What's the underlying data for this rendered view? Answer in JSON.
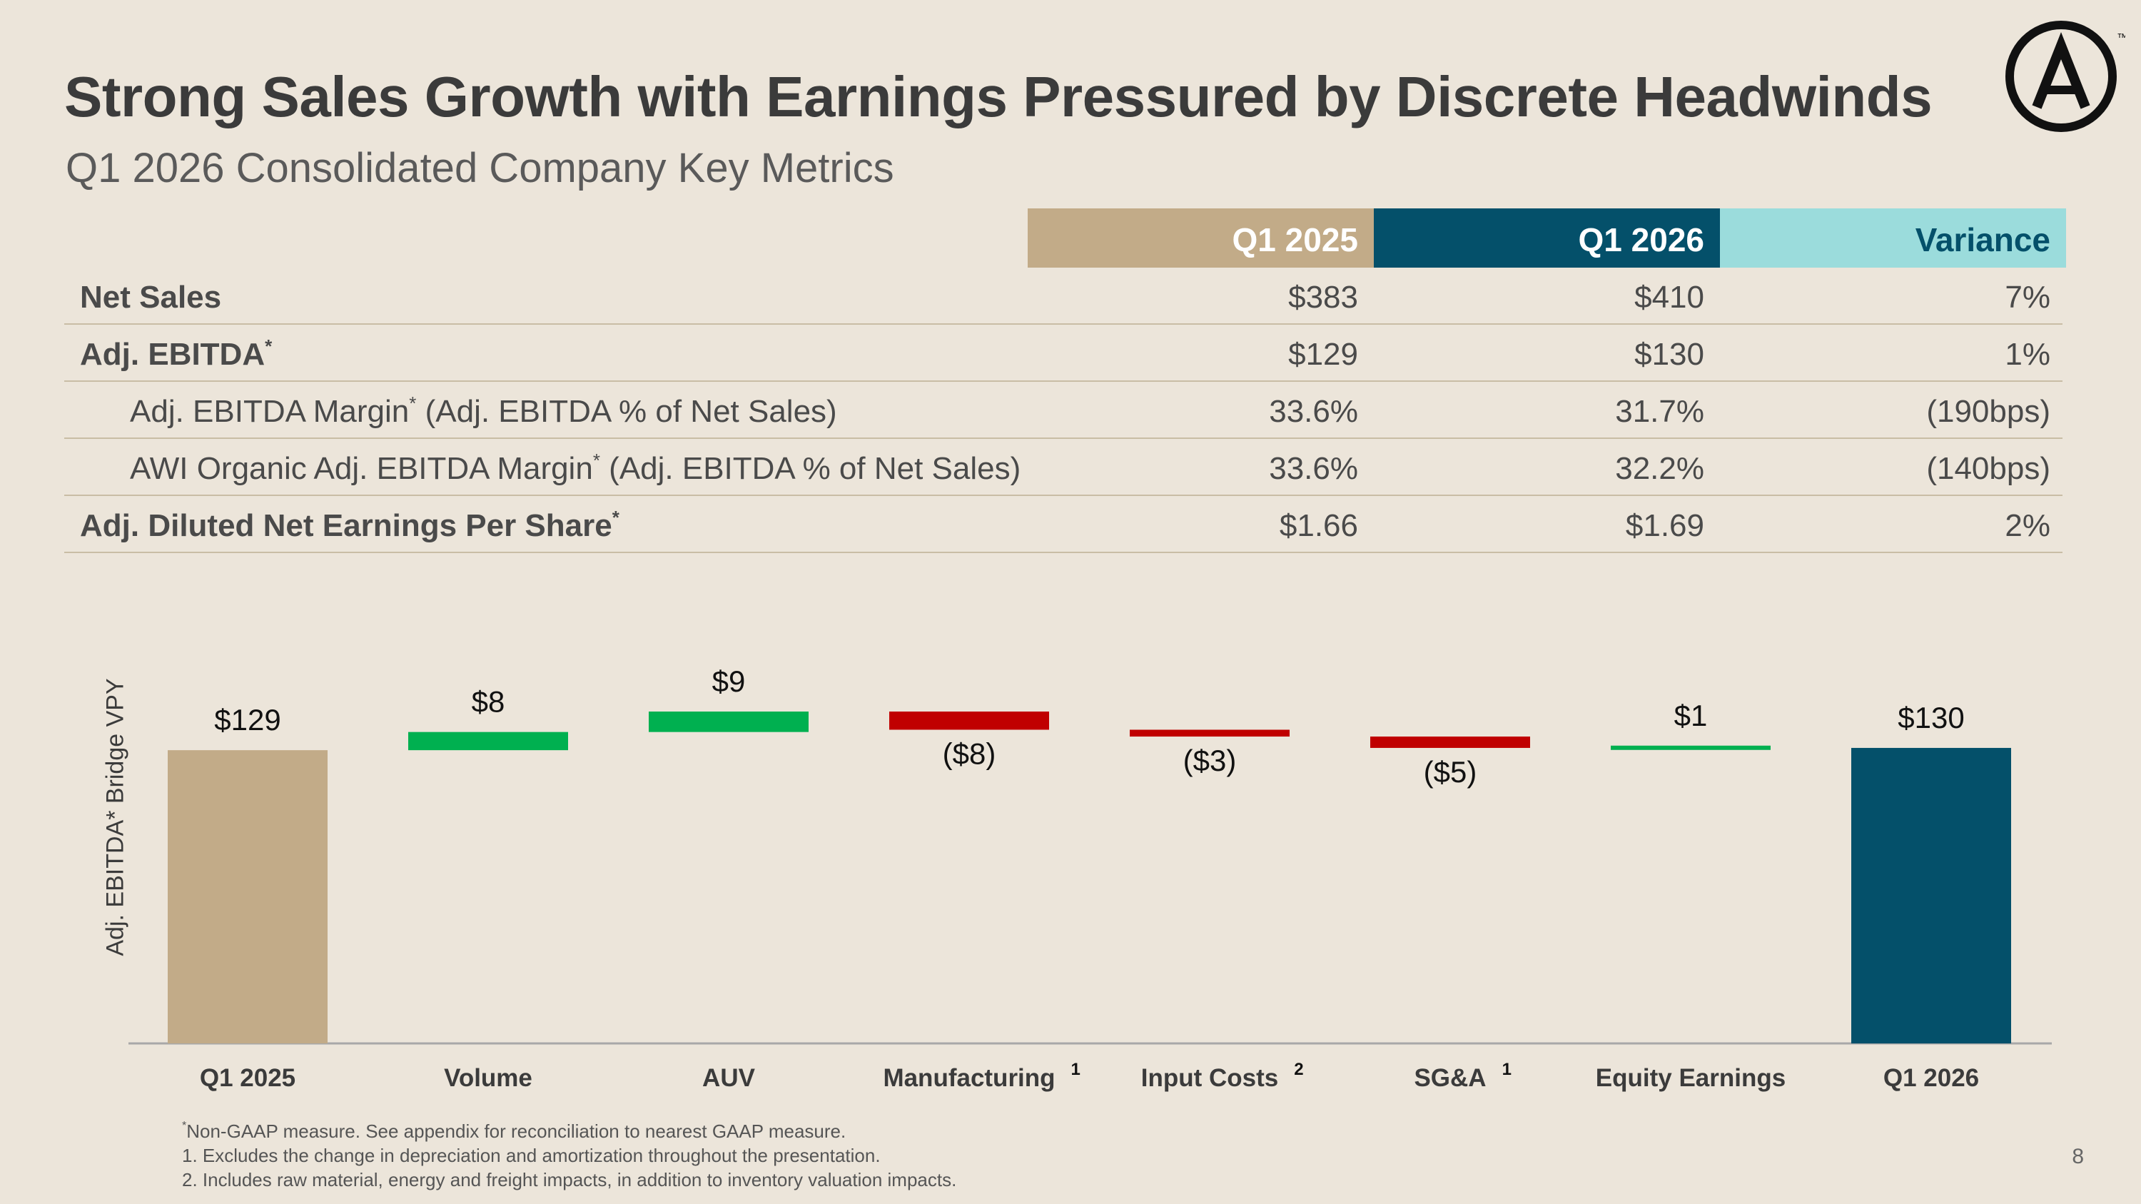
{
  "title": "Strong Sales Growth with Earnings Pressured by Discrete Headwinds",
  "subtitle": "Q1 2026 Consolidated Company Key Metrics",
  "logo": {
    "letter": "A",
    "trademark": "™"
  },
  "table": {
    "headers": [
      "Q1 2025",
      "Q1 2026",
      "Variance"
    ],
    "header_colors": [
      "#c2ab88",
      "#04506a",
      "#9bdcdc"
    ],
    "rows": [
      {
        "label": "Net Sales",
        "sup": "",
        "suffix": "",
        "values": [
          "$383",
          "$410",
          "7%"
        ]
      },
      {
        "label": "Adj. EBITDA",
        "sup": "*",
        "suffix": "",
        "values": [
          "$129",
          "$130",
          "1%"
        ]
      },
      {
        "label": "Adj. EBITDA Margin",
        "sup": "*",
        "suffix": " (Adj. EBITDA % of Net Sales)",
        "values": [
          "33.6%",
          "31.7%",
          "(190bps)"
        ]
      },
      {
        "label": "AWI Organic Adj. EBITDA Margin",
        "sup": "*",
        "suffix": " (Adj. EBITDA % of Net Sales)",
        "values": [
          "33.6%",
          "32.2%",
          "(140bps)"
        ]
      },
      {
        "label": "Adj. Diluted Net Earnings Per Share",
        "sup": "*",
        "suffix": "",
        "values": [
          "$1.66",
          "$1.69",
          "2%"
        ]
      }
    ]
  },
  "chart_data": {
    "type": "bar",
    "subtype": "waterfall",
    "ylabel": "Adj. EBITDA* Bridge VPY",
    "categories": [
      "Q1 2025",
      "Volume",
      "AUV",
      "Manufacturing",
      "Input Costs",
      "SG&A",
      "Equity Earnings",
      "Q1 2026"
    ],
    "category_superscripts": [
      "",
      "",
      "",
      "1",
      "2",
      "1",
      "",
      ""
    ],
    "values": [
      129,
      8,
      9,
      -8,
      -3,
      -5,
      1,
      130
    ],
    "kinds": [
      "total",
      "delta",
      "delta",
      "delta",
      "delta",
      "delta",
      "delta",
      "total"
    ],
    "data_labels": [
      "$129",
      "$8",
      "$9",
      "($8)",
      "($3)",
      "($5)",
      "$1",
      "$130"
    ],
    "colors": {
      "start": "#c2ab88",
      "increase": "#00b050",
      "decrease": "#c00000",
      "end": "#04506a"
    },
    "grid": false
  },
  "footnotes": [
    {
      "sup": "*",
      "text": "Non-GAAP measure. See appendix for reconciliation to nearest GAAP measure."
    },
    {
      "sup": "",
      "text": "1. Excludes the change in depreciation and amortization throughout the presentation."
    },
    {
      "sup": "",
      "text": "2. Includes raw material, energy and freight impacts, in addition to inventory valuation impacts."
    }
  ],
  "page_number": "8"
}
